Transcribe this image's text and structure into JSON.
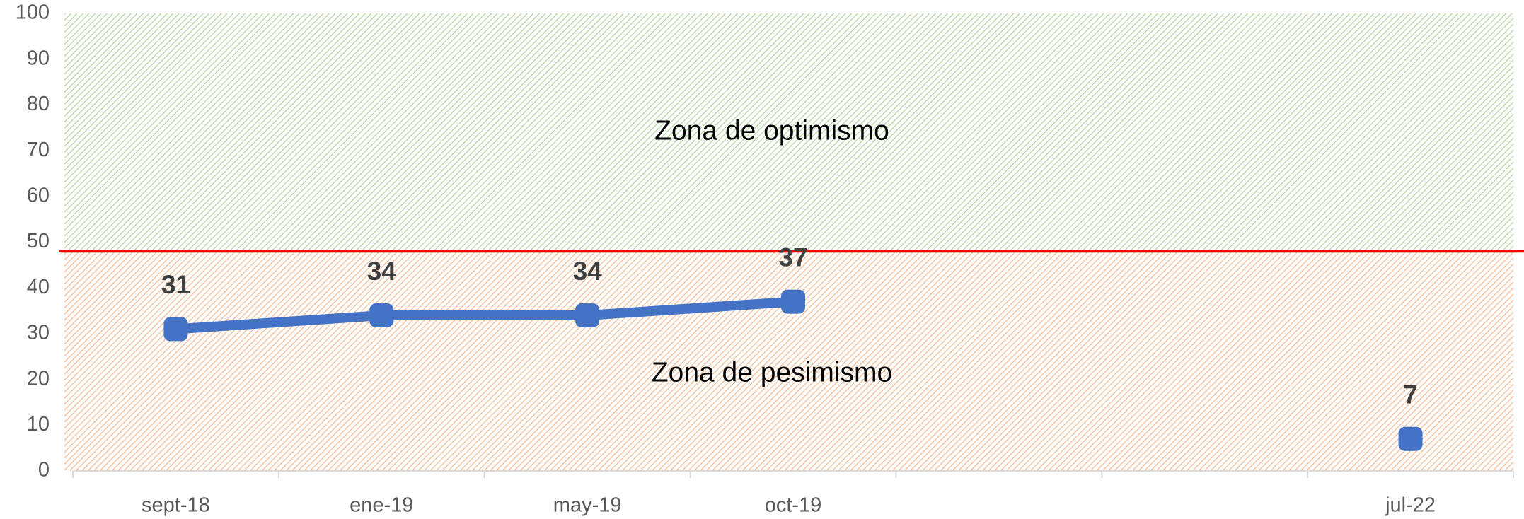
{
  "chart_data": {
    "type": "line",
    "categories": [
      "sept-18",
      "ene-19",
      "may-19",
      "oct-19",
      null,
      null,
      "jul-22"
    ],
    "values": [
      31,
      34,
      34,
      37,
      null,
      null,
      7
    ],
    "color": "#4472c4",
    "ylim": [
      0,
      100
    ],
    "yticks": [
      0,
      10,
      20,
      30,
      40,
      50,
      60,
      70,
      80,
      90,
      100
    ],
    "threshold": {
      "value": 48,
      "color": "#ff0000"
    },
    "zones": [
      {
        "text": "Zona de optimismo",
        "color": "#a9d18e"
      },
      {
        "text": "Zona de pesimismo",
        "color": "#f4b183"
      }
    ]
  }
}
